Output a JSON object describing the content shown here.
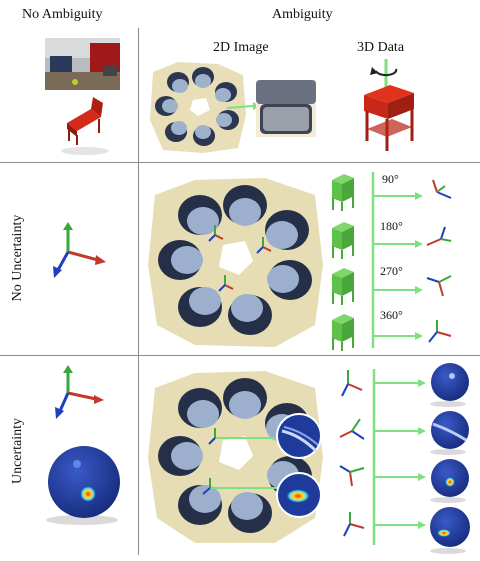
{
  "headers": {
    "no_ambiguity": "No Ambiguity",
    "ambiguity": "Ambiguity",
    "image_2d": "2D Image",
    "data_3d": "3D Data"
  },
  "row_labels": {
    "no_uncertainty": "No Uncertainty",
    "uncertainty": "Uncertainty"
  },
  "angles": [
    "90°",
    "180°",
    "270°",
    "360°"
  ],
  "colors": {
    "axis_x": "#c0392b",
    "axis_y": "#3aa83a",
    "axis_z": "#1f3fbf",
    "arrow_green": "#7ee07e",
    "chair_red": "#d42a1a",
    "box_green": "#5ec24a",
    "sphere_blue": "#1e3a9a",
    "divider": "#8a8a8a"
  }
}
